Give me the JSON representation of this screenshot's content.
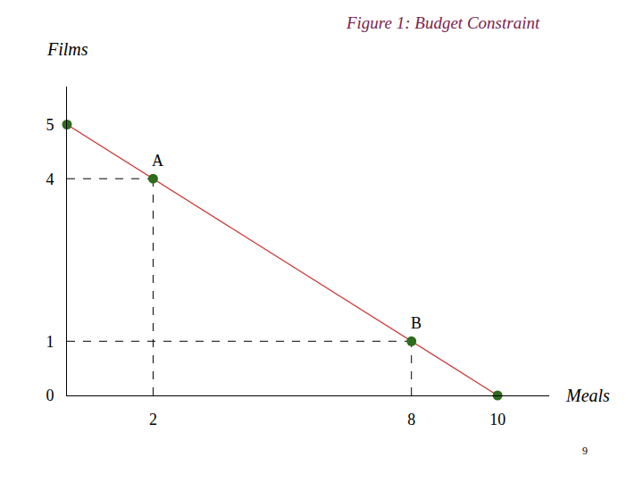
{
  "chart_data": {
    "type": "line",
    "title": "Figure 1: Budget Constraint",
    "y_label": "Films",
    "x_label": "Meals",
    "page_number": "9",
    "x": [
      0,
      2,
      8,
      10
    ],
    "values": [
      5,
      4,
      1,
      0
    ],
    "point_labels": [
      null,
      "A",
      "B",
      null
    ],
    "color": "#cc3333",
    "colors": [
      "#2e6b1a",
      "#2e6b1a",
      "#2e6b1a",
      "#2e6b1a"
    ],
    "marker": "circle",
    "line_style": "solid",
    "xlim": [
      0,
      11.2
    ],
    "ylim": [
      0,
      5.7
    ],
    "xticks": [
      2,
      8,
      10
    ],
    "yticks": [
      0,
      1,
      4,
      5
    ],
    "grid": false
  }
}
